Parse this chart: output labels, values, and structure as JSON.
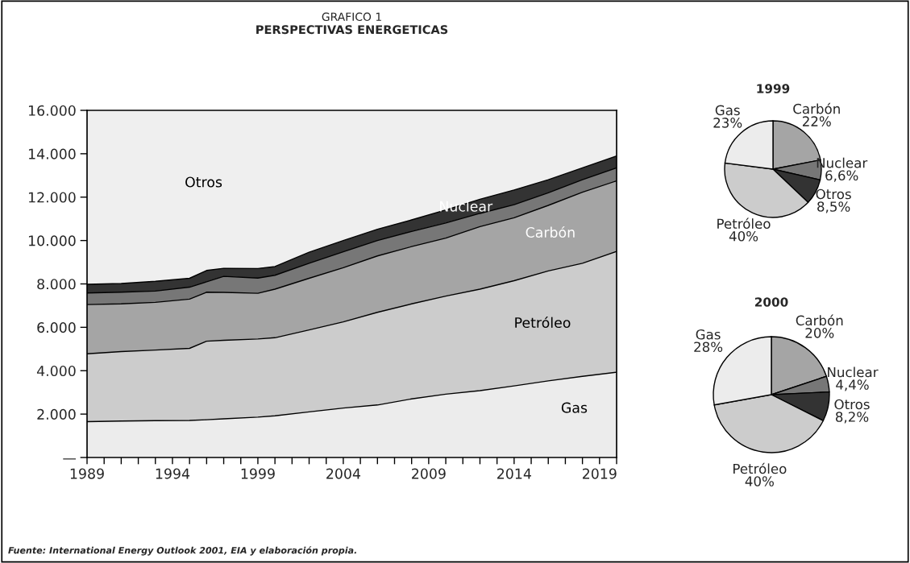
{
  "chart_data": [
    {
      "type": "area",
      "stacked": true,
      "title": "GRAFICO 1",
      "subtitle": "PERSPECTIVAS ENERGETICAS",
      "x": [
        1989,
        1991,
        1993,
        1995,
        1996,
        1997,
        1999,
        2000,
        2002,
        2004,
        2006,
        2008,
        2010,
        2012,
        2014,
        2016,
        2018,
        2020
      ],
      "series": [
        {
          "name": "Gas",
          "color": "#ececec",
          "values": [
            1650,
            1680,
            1700,
            1710,
            1740,
            1780,
            1860,
            1920,
            2100,
            2280,
            2420,
            2700,
            2920,
            3080,
            3300,
            3530,
            3740,
            3930
          ]
        },
        {
          "name": "Petróleo",
          "color": "#cccccc",
          "values": [
            3130,
            3200,
            3250,
            3320,
            3620,
            3620,
            3600,
            3600,
            3780,
            3970,
            4270,
            4380,
            4520,
            4680,
            4850,
            5070,
            5210,
            5570
          ]
        },
        {
          "name": "Carbón",
          "color": "#a5a5a5",
          "values": [
            2270,
            2200,
            2200,
            2270,
            2260,
            2210,
            2110,
            2240,
            2380,
            2500,
            2600,
            2640,
            2670,
            2880,
            2900,
            3020,
            3280,
            3250
          ]
        },
        {
          "color": "#777777",
          "values": [
            530,
            540,
            520,
            550,
            480,
            740,
            700,
            640,
            690,
            730,
            710,
            700,
            700,
            610,
            600,
            580,
            570,
            600
          ]
        },
        {
          "color": "#333333",
          "values": [
            400,
            400,
            450,
            410,
            520,
            370,
            440,
            400,
            510,
            520,
            520,
            530,
            600,
            650,
            680,
            600,
            550,
            550
          ]
        }
      ],
      "xlim": [
        1989,
        2020
      ],
      "xticks": [
        {
          "value": 1989,
          "label": "1989"
        },
        {
          "value": 1990,
          "label": null
        },
        {
          "value": 1991,
          "label": null
        },
        {
          "value": 1992,
          "label": null
        },
        {
          "value": 1993,
          "label": null
        },
        {
          "value": 1994,
          "label": "1994"
        },
        {
          "value": 1995,
          "label": null
        },
        {
          "value": 1996,
          "label": null
        },
        {
          "value": 1997,
          "label": null
        },
        {
          "value": 1998,
          "label": null
        },
        {
          "value": 1999,
          "label": "1999"
        },
        {
          "value": 2000,
          "label": null
        },
        {
          "value": 2001,
          "label": null
        },
        {
          "value": 2002,
          "label": null
        },
        {
          "value": 2003,
          "label": null
        },
        {
          "value": 2004,
          "label": "2004"
        },
        {
          "value": 2005,
          "label": null
        },
        {
          "value": 2006,
          "label": null
        },
        {
          "value": 2007,
          "label": null
        },
        {
          "value": 2008,
          "label": null
        },
        {
          "value": 2009,
          "label": "2009"
        },
        {
          "value": 2010,
          "label": null
        },
        {
          "value": 2011,
          "label": null
        },
        {
          "value": 2012,
          "label": null
        },
        {
          "value": 2013,
          "label": null
        },
        {
          "value": 2014,
          "label": "2014"
        },
        {
          "value": 2015,
          "label": null
        },
        {
          "value": 2016,
          "label": null
        },
        {
          "value": 2017,
          "label": null
        },
        {
          "value": 2018,
          "label": null
        },
        {
          "value": 2019,
          "label": "2019"
        },
        {
          "value": 2020,
          "label": null
        }
      ],
      "ylim": [
        0,
        16000
      ],
      "yticks": [
        {
          "value": 0,
          "label": "—"
        },
        {
          "value": 2000,
          "label": "2.000"
        },
        {
          "value": 4000,
          "label": "4.000"
        },
        {
          "value": 6000,
          "label": "6.000"
        },
        {
          "value": 8000,
          "label": "8.000"
        },
        {
          "value": 10000,
          "label": "10.000"
        },
        {
          "value": 12000,
          "label": "12.000"
        },
        {
          "value": 14000,
          "label": "14.000"
        },
        {
          "value": 16000,
          "label": "16.000"
        }
      ],
      "grid": false,
      "annotations": [
        "Nuclear",
        "Otros",
        "Fuente: International Energy Outlook 2001, EIA y elaboración propia."
      ]
    },
    {
      "type": "pie",
      "title": "1999",
      "categories": [
        "Carbón",
        "Nuclear",
        "Otros",
        "Petróleo",
        "Gas"
      ],
      "values": [
        22,
        6.6,
        8.5,
        40,
        23
      ],
      "colors": [
        "#a5a5a5",
        "#777777",
        "#333333",
        "#cccccc",
        "#ececec"
      ],
      "value_labels": [
        "22%",
        "6,6%",
        "8,5%",
        "40%",
        "23%"
      ]
    },
    {
      "type": "pie",
      "title": "2000",
      "categories": [
        "Carbón",
        "Nuclear",
        "Otros",
        "Petróleo",
        "Gas"
      ],
      "values": [
        20,
        4.4,
        8.2,
        40,
        28
      ],
      "colors": [
        "#a5a5a5",
        "#777777",
        "#333333",
        "#cccccc",
        "#ececec"
      ],
      "value_labels": [
        "20%",
        "4,4%",
        "8,2%",
        "40%",
        "28%"
      ]
    }
  ]
}
